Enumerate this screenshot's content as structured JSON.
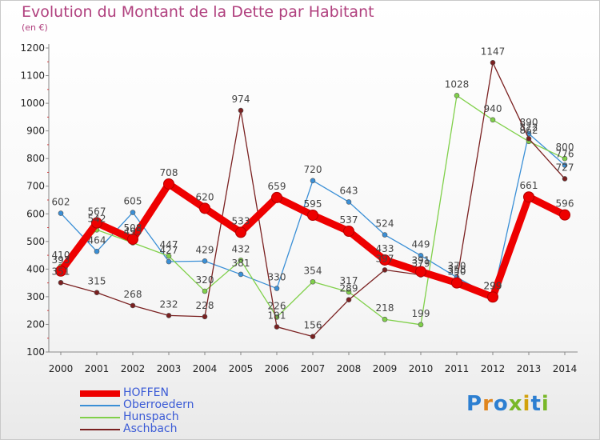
{
  "page": {
    "title": "Evolution du Montant de la Dette par Habitant",
    "subtitle": "(en €)"
  },
  "colors": {
    "title": "#b0407e",
    "axis": "#888888",
    "tick_label": "#222222",
    "data_label": "#444444",
    "legend_text": "#3b5bd6"
  },
  "logo": {
    "letters": [
      "P",
      "r",
      "o",
      "x",
      "i",
      "t",
      "i"
    ],
    "colors": [
      "#2d7fd1",
      "#e0851d",
      "#2d7fd1",
      "#79b829",
      "#d2a10c",
      "#2d7fd1",
      "#79b829"
    ]
  },
  "chart_data": {
    "type": "line",
    "title": "Evolution du Montant de la Dette par Habitant",
    "subtitle": "(en €)",
    "xlabel": "",
    "ylabel": "",
    "x": [
      "2000",
      "2001",
      "2002",
      "2003",
      "2004",
      "2005",
      "2006",
      "2007",
      "2008",
      "2009",
      "2010",
      "2011",
      "2012",
      "2013",
      "2014"
    ],
    "ylim": [
      100,
      1200
    ],
    "yticks": [
      "100",
      "200",
      "300",
      "400",
      "500",
      "600",
      "700",
      "800",
      "900",
      "1000",
      "1100",
      "1200"
    ],
    "grid": false,
    "legend_position": "bottom-left",
    "series": [
      {
        "name": "HOFFEN",
        "color": "#ee0000",
        "values": [
          393,
          567,
          508,
          708,
          620,
          533,
          659,
          595,
          537,
          433,
          391,
          350,
          299,
          661,
          596
        ]
      },
      {
        "name": "Oberroedern",
        "color": "#3a8fd6",
        "values": [
          602,
          464,
          605,
          427,
          429,
          381,
          330,
          720,
          643,
          524,
          449,
          370,
          299,
          890,
          776
        ]
      },
      {
        "name": "Hunspach",
        "color": "#80d04a",
        "values": [
          410,
          542,
          495,
          447,
          320,
          432,
          226,
          354,
          317,
          218,
          199,
          1028,
          940,
          862,
          800
        ]
      },
      {
        "name": "Aschbach",
        "color": "#7a2020",
        "values": [
          351,
          315,
          268,
          232,
          228,
          974,
          191,
          156,
          289,
          397,
          379,
          358,
          1147,
          872,
          727
        ]
      }
    ],
    "value_labels": [
      [
        "393",
        "567",
        "508",
        "708",
        "620",
        "533",
        "659",
        "595",
        "537",
        "433",
        "391",
        "350",
        "299",
        "661",
        "596"
      ],
      [
        "602",
        "464",
        "605",
        "427",
        "429",
        "381",
        "330",
        "720",
        "643",
        "524",
        "449",
        "370",
        "299",
        "890",
        "776"
      ],
      [
        "410",
        "542",
        "495",
        "447",
        "320",
        "432",
        "226",
        "354",
        "317",
        "218",
        "199",
        "1028",
        "940",
        "862",
        "800"
      ],
      [
        "351",
        "315",
        "268",
        "232",
        "228",
        "974",
        "191",
        "156",
        "289",
        "397",
        "379",
        "358",
        "1147",
        "872",
        "727"
      ]
    ]
  }
}
